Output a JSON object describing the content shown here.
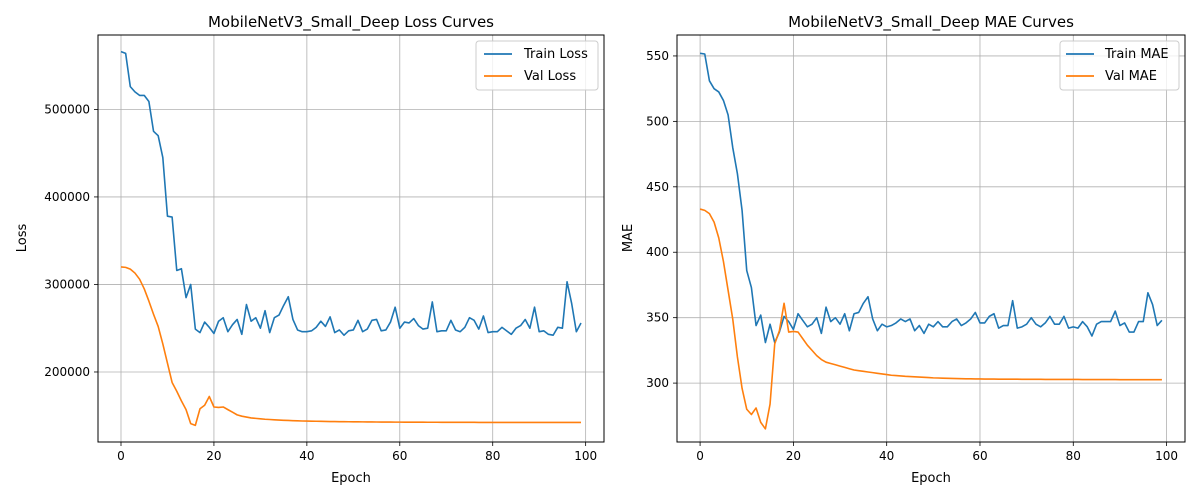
{
  "chart_data": [
    {
      "type": "line",
      "title": "MobileNetV3_Small_Deep Loss Curves",
      "xlabel": "Epoch",
      "ylabel": "Loss",
      "xlim": [
        -4.95,
        103.95
      ],
      "ylim": [
        120000,
        585000
      ],
      "xticks": [
        0,
        20,
        40,
        60,
        80,
        100
      ],
      "yticks": [
        200000,
        300000,
        400000,
        500000
      ],
      "grid": true,
      "legend": "top-right",
      "series": [
        {
          "name": "Train Loss",
          "color": "#1f77b4",
          "values": [
            566000,
            564000,
            526000,
            520000,
            516000,
            516000,
            509000,
            475000,
            470000,
            445000,
            378000,
            377000,
            316000,
            318000,
            285000,
            300000,
            249000,
            245000,
            257000,
            251000,
            244000,
            258000,
            262000,
            246000,
            254000,
            260000,
            243000,
            277000,
            258000,
            262000,
            250000,
            270000,
            245000,
            262000,
            265000,
            276000,
            286000,
            260000,
            248000,
            246000,
            246000,
            247000,
            251000,
            258000,
            252000,
            263000,
            245000,
            248000,
            242000,
            247000,
            248000,
            259000,
            246000,
            249000,
            259000,
            260000,
            247000,
            248000,
            257000,
            274000,
            250000,
            257000,
            256000,
            261000,
            253000,
            249000,
            250000,
            280000,
            246000,
            247000,
            247000,
            259000,
            248000,
            246000,
            251000,
            262000,
            259000,
            249000,
            264000,
            245000,
            246000,
            246000,
            251000,
            247000,
            243000,
            250000,
            253000,
            260000,
            250000,
            274000,
            246000,
            247000,
            243000,
            242000,
            251000,
            250000,
            303000,
            278000,
            246000,
            256000
          ]
        },
        {
          "name": "Val Loss",
          "color": "#ff7f0e",
          "values": [
            320000,
            319500,
            317500,
            313000,
            306000,
            295000,
            281000,
            266000,
            252000,
            232000,
            210000,
            188000,
            178000,
            167000,
            157000,
            141000,
            139000,
            158000,
            162000,
            172000,
            160000,
            159500,
            160000,
            157000,
            154000,
            151000,
            149500,
            148500,
            147500,
            147000,
            146500,
            146000,
            145700,
            145400,
            145100,
            144800,
            144600,
            144400,
            144200,
            144000,
            143900,
            143800,
            143700,
            143600,
            143500,
            143400,
            143300,
            143250,
            143200,
            143150,
            143100,
            143050,
            143000,
            142950,
            142900,
            142850,
            142800,
            142800,
            142750,
            142700,
            142700,
            142650,
            142650,
            142600,
            142600,
            142600,
            142550,
            142550,
            142550,
            142500,
            142500,
            142500,
            142500,
            142450,
            142450,
            142450,
            142450,
            142400,
            142400,
            142400,
            142400,
            142400,
            142400,
            142400,
            142350,
            142350,
            142350,
            142350,
            142350,
            142350,
            142300,
            142300,
            142300,
            142300,
            142300,
            142300,
            142300,
            142300,
            142300,
            142300
          ]
        }
      ]
    },
    {
      "type": "line",
      "title": "MobileNetV3_Small_Deep MAE Curves",
      "xlabel": "Epoch",
      "ylabel": "MAE",
      "xlim": [
        -4.95,
        103.95
      ],
      "ylim": [
        255,
        566
      ],
      "xticks": [
        0,
        20,
        40,
        60,
        80,
        100
      ],
      "yticks": [
        300,
        350,
        400,
        450,
        500,
        550
      ],
      "grid": true,
      "legend": "top-right",
      "series": [
        {
          "name": "Train MAE",
          "color": "#1f77b4",
          "values": [
            552,
            551.5,
            531,
            525,
            522.5,
            516,
            505,
            480,
            460,
            432,
            386,
            373,
            344,
            352,
            331,
            345,
            331,
            339,
            351,
            347,
            341,
            353,
            348,
            343,
            345,
            350,
            338,
            358,
            347,
            350,
            345,
            353,
            340,
            353,
            354,
            361,
            366,
            349,
            340,
            345,
            343,
            344,
            346,
            349,
            347,
            349,
            340,
            344,
            338,
            345,
            343,
            347,
            343,
            343,
            347,
            349,
            344,
            346,
            349,
            354,
            346,
            346,
            351,
            353,
            342,
            344,
            344,
            363,
            342,
            343,
            345,
            350,
            345,
            343,
            346,
            351,
            345,
            345,
            351,
            342,
            343,
            342,
            347,
            343,
            336,
            345,
            347,
            347,
            347,
            355,
            344,
            346,
            339,
            339,
            347,
            347,
            369,
            360,
            344,
            348
          ]
        },
        {
          "name": "Val MAE",
          "color": "#ff7f0e",
          "values": [
            433,
            432,
            429.5,
            423,
            411,
            393,
            371,
            349,
            320,
            296,
            280,
            276,
            281,
            270,
            265,
            284,
            330,
            340,
            361,
            339,
            339.5,
            339,
            334,
            329,
            325,
            321,
            318,
            316,
            315,
            314,
            313,
            312,
            311,
            310,
            309.5,
            309,
            308.5,
            308,
            307.5,
            307,
            306.5,
            306,
            305.8,
            305.5,
            305.2,
            305,
            304.8,
            304.6,
            304.4,
            304.2,
            304,
            303.9,
            303.8,
            303.7,
            303.6,
            303.5,
            303.4,
            303.3,
            303.3,
            303.2,
            303.2,
            303.1,
            303.1,
            303.1,
            303,
            303,
            303,
            303,
            303,
            302.9,
            302.9,
            302.9,
            302.9,
            302.9,
            302.8,
            302.8,
            302.8,
            302.8,
            302.8,
            302.8,
            302.8,
            302.8,
            302.7,
            302.7,
            302.7,
            302.7,
            302.7,
            302.7,
            302.7,
            302.7,
            302.6,
            302.6,
            302.6,
            302.6,
            302.6,
            302.6,
            302.6,
            302.6,
            302.6,
            302.6
          ]
        }
      ]
    }
  ]
}
